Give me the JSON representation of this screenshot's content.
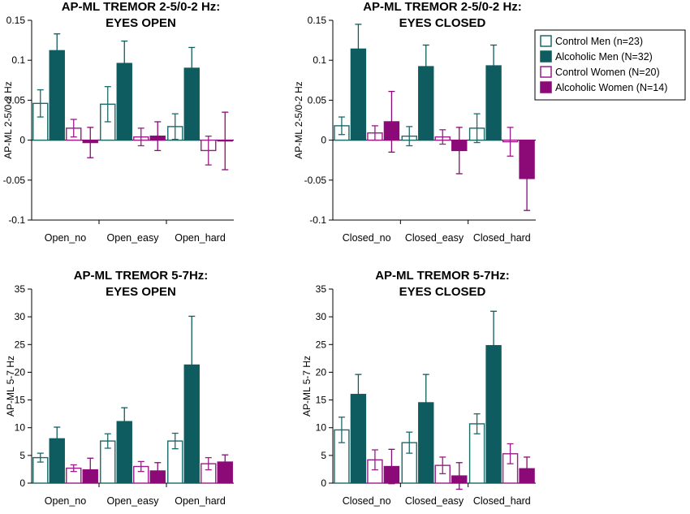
{
  "colors": {
    "control_men": "#1b6a6a",
    "alcoholic_men": "#0e5c5f",
    "control_women": "#9a1c86",
    "alcoholic_women": "#8c0a78"
  },
  "legend": {
    "items": [
      {
        "label": "Control Men (n=23)",
        "color": "#1b6a6a",
        "filled": false
      },
      {
        "label": "Alcoholic Men (N=32)",
        "color": "#0e5c5f",
        "filled": true
      },
      {
        "label": "Control Women (N=20)",
        "color": "#9a1c86",
        "filled": false
      },
      {
        "label": "Alcoholic Women (N=14)",
        "color": "#8c0a78",
        "filled": true
      }
    ]
  },
  "chart_data": [
    {
      "type": "bar",
      "title_lines": [
        "AP-ML TREMOR 2-5/0-2 Hz:",
        "EYES OPEN"
      ],
      "ylabel": "AP-ML 2-5/0-2 Hz",
      "ylim": [
        -0.1,
        0.15
      ],
      "yticks": [
        -0.1,
        -0.05,
        0,
        0.05,
        0.1,
        0.15
      ],
      "ytick_labels": [
        "-0.1",
        "-0.05",
        "0",
        "0.05",
        "0.1",
        "0.15"
      ],
      "categories": [
        "Open_no",
        "Open_easy",
        "Open_hard"
      ],
      "series": [
        {
          "name": "Control Men (n=23)",
          "values": [
            0.046,
            0.045,
            0.017
          ],
          "errors": [
            0.017,
            0.022,
            0.016
          ]
        },
        {
          "name": "Alcoholic Men (N=32)",
          "values": [
            0.112,
            0.096,
            0.09
          ],
          "errors": [
            0.021,
            0.028,
            0.026
          ]
        },
        {
          "name": "Control Women (N=20)",
          "values": [
            0.015,
            0.004,
            -0.013
          ],
          "errors": [
            0.011,
            0.011,
            0.018
          ]
        },
        {
          "name": "Alcoholic Women (N=14)",
          "values": [
            -0.003,
            0.005,
            -0.001
          ],
          "errors": [
            0.019,
            0.018,
            0.036
          ]
        }
      ]
    },
    {
      "type": "bar",
      "title_lines": [
        "AP-ML TREMOR 2-5/0-2 Hz:",
        "EYES CLOSED"
      ],
      "ylabel": "AP-ML 2-5/0-2 Hz",
      "ylim": [
        -0.1,
        0.15
      ],
      "yticks": [
        -0.1,
        -0.05,
        0,
        0.05,
        0.1,
        0.15
      ],
      "ytick_labels": [
        "-0.1",
        "-0.05",
        "0",
        "0.05",
        "0.1",
        "0.15"
      ],
      "categories": [
        "Closed_no",
        "Closed_easy",
        "Closed_hard"
      ],
      "series": [
        {
          "name": "Control Men (n=23)",
          "values": [
            0.018,
            0.005,
            0.015
          ],
          "errors": [
            0.011,
            0.012,
            0.018
          ]
        },
        {
          "name": "Alcoholic Men (N=32)",
          "values": [
            0.114,
            0.092,
            0.093
          ],
          "errors": [
            0.031,
            0.027,
            0.026
          ]
        },
        {
          "name": "Control Women (N=20)",
          "values": [
            0.009,
            0.004,
            -0.002
          ],
          "errors": [
            0.009,
            0.009,
            0.018
          ]
        },
        {
          "name": "Alcoholic Women (N=14)",
          "values": [
            0.023,
            -0.013,
            -0.048
          ],
          "errors": [
            0.038,
            0.029,
            0.04
          ]
        }
      ]
    },
    {
      "type": "bar",
      "title_lines": [
        "AP-ML TREMOR 5-7Hz:",
        "EYES OPEN"
      ],
      "ylabel": "AP-ML 5-7 Hz",
      "ylim": [
        0,
        35
      ],
      "yticks": [
        0,
        5,
        10,
        15,
        20,
        25,
        30,
        35
      ],
      "ytick_labels": [
        "0",
        "5",
        "10",
        "15",
        "20",
        "25",
        "30",
        "35"
      ],
      "categories": [
        "Open_no",
        "Open_easy",
        "Open_hard"
      ],
      "series": [
        {
          "name": "Control Men (n=23)",
          "values": [
            4.6,
            7.6,
            7.6
          ],
          "errors": [
            0.8,
            1.3,
            1.4
          ]
        },
        {
          "name": "Alcoholic Men (N=32)",
          "values": [
            8.0,
            11.1,
            21.3
          ],
          "errors": [
            2.1,
            2.5,
            8.8
          ]
        },
        {
          "name": "Control Women (N=20)",
          "values": [
            2.7,
            3.0,
            3.5
          ],
          "errors": [
            0.6,
            0.9,
            1.1
          ]
        },
        {
          "name": "Alcoholic Women (N=14)",
          "values": [
            2.4,
            2.2,
            3.8
          ],
          "errors": [
            2.1,
            1.5,
            1.3
          ]
        }
      ]
    },
    {
      "type": "bar",
      "title_lines": [
        "AP-ML TREMOR 5-7Hz:",
        "EYES CLOSED"
      ],
      "ylabel": "AP-ML 5-7 Hz",
      "ylim": [
        0,
        35
      ],
      "yticks": [
        0,
        5,
        10,
        15,
        20,
        25,
        30,
        35
      ],
      "ytick_labels": [
        "0",
        "5",
        "10",
        "15",
        "20",
        "25",
        "30",
        "35"
      ],
      "categories": [
        "Closed_no",
        "Closed_easy",
        "Closed_hard"
      ],
      "series": [
        {
          "name": "Control Men (n=23)",
          "values": [
            9.6,
            7.3,
            10.7
          ],
          "errors": [
            2.3,
            1.9,
            1.8
          ]
        },
        {
          "name": "Alcoholic Men (N=32)",
          "values": [
            16.0,
            14.5,
            24.8
          ],
          "errors": [
            3.6,
            5.1,
            6.2
          ]
        },
        {
          "name": "Control Women (N=20)",
          "values": [
            4.2,
            3.2,
            5.3
          ],
          "errors": [
            1.8,
            1.5,
            1.8
          ]
        },
        {
          "name": "Alcoholic Women (N=14)",
          "values": [
            3.0,
            1.3,
            2.6
          ],
          "errors": [
            3.1,
            2.4,
            2.1
          ]
        }
      ]
    }
  ]
}
